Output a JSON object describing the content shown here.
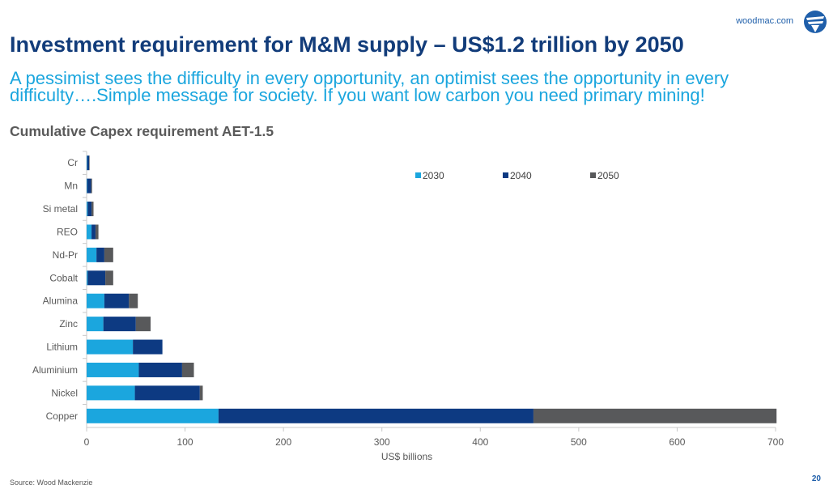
{
  "header": {
    "site": "woodmac.com",
    "logo_icon": "woodmac-logo-icon"
  },
  "title": "Investment requirement for M&M supply – US$1.2 trillion by 2050",
  "subtitle": "A pessimist sees the difficulty in every opportunity, an optimist sees the opportunity in every difficulty….Simple message for society.  If you want low carbon you need primary mining!",
  "chart_title": "Cumulative Capex requirement AET-1.5",
  "footer": {
    "source": "Source: Wood Mackenzie",
    "page": "20"
  },
  "colors": {
    "title": "#123c7a",
    "subtitle": "#1ba6de",
    "s2030": "#1ba6de",
    "s2040": "#0d3a82",
    "s2050": "#58595b"
  },
  "chart_data": {
    "type": "bar",
    "orientation": "horizontal",
    "stacked": true,
    "title": "Cumulative Capex requirement AET-1.5",
    "xlabel": "US$ billions",
    "ylabel": "",
    "xlim": [
      0,
      700
    ],
    "xticks": [
      0,
      100,
      200,
      300,
      400,
      500,
      600,
      700
    ],
    "grid": false,
    "legend_position": "top-right",
    "categories": [
      "Cr",
      "Mn",
      "Si metal",
      "REO",
      "Nd-Pr",
      "Cobalt",
      "Alumina",
      "Zinc",
      "Lithium",
      "Aluminium",
      "Nickel",
      "Copper"
    ],
    "series": [
      {
        "name": "2030",
        "color": "#1ba6de",
        "values": [
          0.5,
          0.5,
          1,
          5,
          10,
          1,
          18,
          17,
          47,
          53,
          49,
          134
        ]
      },
      {
        "name": "2040",
        "color": "#0d3a82",
        "values": [
          2,
          4,
          4,
          4,
          8,
          18,
          25,
          33,
          30,
          44,
          66,
          320
        ]
      },
      {
        "name": "2050",
        "color": "#58595b",
        "values": [
          0.5,
          1,
          2,
          3,
          9,
          8,
          9,
          15,
          0,
          12,
          3,
          247
        ]
      }
    ]
  }
}
